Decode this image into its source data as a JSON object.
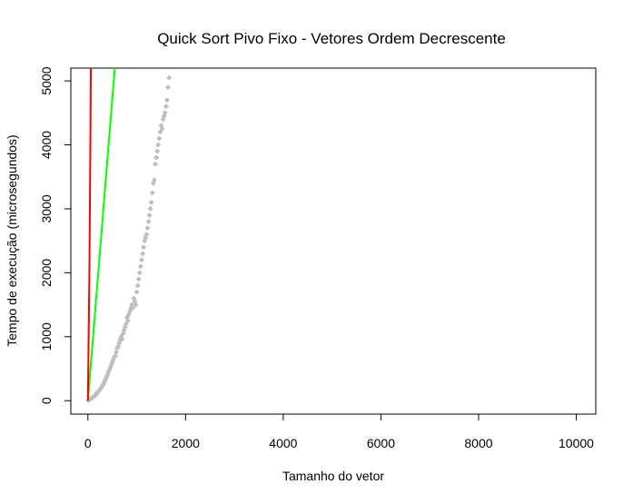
{
  "chart_data": {
    "type": "scatter",
    "title": "Quick Sort Pivo Fixo - Vetores Ordem Decrescente",
    "xlabel": "Tamanho do vetor",
    "ylabel": "Tempo de execução (microsegundos)",
    "xlim": [
      -350,
      10400
    ],
    "ylim": [
      -210,
      5200
    ],
    "x_ticks": [
      0,
      2000,
      4000,
      6000,
      8000,
      10000
    ],
    "x_tick_labels": [
      "0",
      "2000",
      "4000",
      "6000",
      "8000",
      "10000"
    ],
    "y_ticks": [
      0,
      1000,
      2000,
      3000,
      4000,
      5000
    ],
    "y_tick_labels": [
      "0",
      "1000",
      "2000",
      "3000",
      "4000",
      "5000"
    ],
    "grid": false,
    "legend": "none",
    "series": [
      {
        "type": "scatter",
        "color": "#bebebe",
        "x": [
          10,
          20,
          40,
          60,
          80,
          100,
          130,
          160,
          180,
          200,
          230,
          260,
          280,
          300,
          320,
          340,
          360,
          380,
          400,
          420,
          440,
          460,
          480,
          500,
          520,
          540,
          560,
          580,
          600,
          620,
          640,
          660,
          680,
          700,
          720,
          740,
          760,
          780,
          800,
          820,
          840,
          860,
          880,
          900,
          920,
          940,
          960,
          980,
          1000,
          1020,
          1040,
          1060,
          1080,
          1100,
          1120,
          1140,
          1160,
          1180,
          1200,
          1220,
          1240,
          1260,
          1280,
          1300,
          1320,
          1340,
          1360,
          1380,
          1400,
          1420,
          1440,
          1460,
          1480,
          1500,
          1520,
          1540,
          1560,
          1580,
          1600,
          1620,
          1640,
          1660
        ],
        "y": [
          5,
          10,
          20,
          30,
          40,
          50,
          70,
          90,
          120,
          130,
          160,
          190,
          210,
          240,
          260,
          300,
          330,
          370,
          400,
          450,
          480,
          520,
          560,
          600,
          640,
          680,
          700,
          760,
          820,
          850,
          900,
          950,
          1000,
          960,
          1050,
          1100,
          1150,
          1200,
          1300,
          1250,
          1350,
          1400,
          1450,
          1500,
          1450,
          1600,
          1550,
          1500,
          1700,
          1800,
          1900,
          2000,
          2100,
          2200,
          2300,
          2400,
          2500,
          2550,
          2600,
          2700,
          2800,
          2900,
          3000,
          3100,
          3250,
          3400,
          3450,
          3700,
          3800,
          3900,
          4000,
          4100,
          4200,
          4300,
          4250,
          4400,
          4450,
          4500,
          4600,
          4700,
          4900,
          5050
        ]
      },
      {
        "type": "line",
        "color": "#00ff00",
        "x": [
          0,
          550
        ],
        "y": [
          0,
          5200
        ]
      },
      {
        "type": "line",
        "color": "#ff0000",
        "x": [
          0,
          30,
          30,
          50,
          50,
          60
        ],
        "y": [
          0,
          2000,
          2000,
          4000,
          4000,
          5200
        ]
      }
    ]
  }
}
